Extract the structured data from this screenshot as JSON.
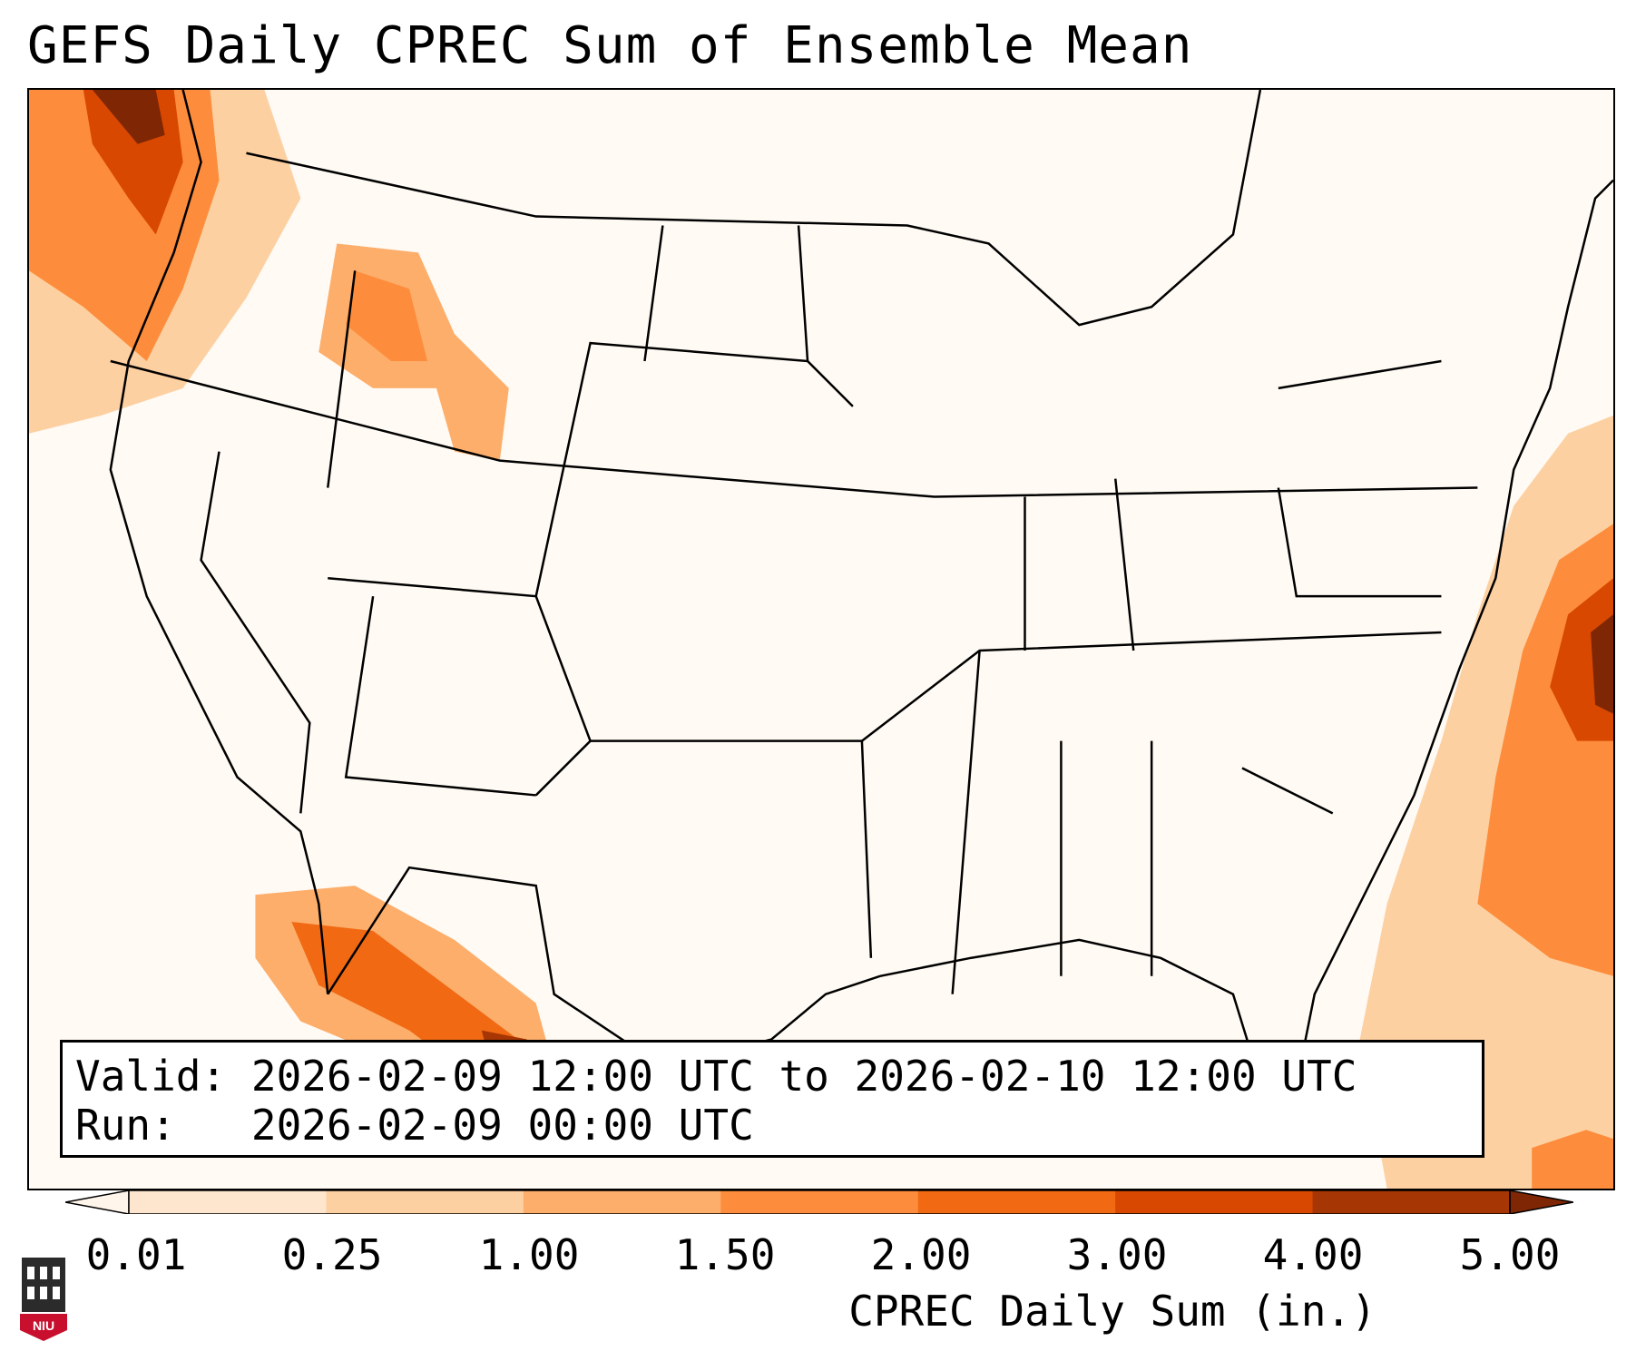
{
  "title": "GEFS Daily CPREC Sum of Ensemble Mean",
  "info": {
    "valid_label": "Valid:",
    "valid_value": "2026-02-09 12:00 UTC to 2026-02-10 12:00 UTC",
    "run_label": "Run:",
    "run_value": "2026-02-09 00:00 UTC"
  },
  "colorbar": {
    "label": "CPREC Daily Sum (in.)",
    "ticks": [
      "0.01",
      "0.25",
      "1.00",
      "1.50",
      "2.00",
      "3.00",
      "4.00",
      "5.00"
    ],
    "colors": [
      "#fff5eb",
      "#fee6ce",
      "#fdd0a2",
      "#fdae6b",
      "#fd8d3c",
      "#f16913",
      "#d94801",
      "#a63603",
      "#7f2704"
    ]
  },
  "logo": {
    "text": "NIU",
    "colors": {
      "shield": "#c8102e",
      "tower": "#000000"
    }
  },
  "map": {
    "region": "Continental United States",
    "style": {
      "land": "#ffffff",
      "border": "#000000"
    }
  }
}
